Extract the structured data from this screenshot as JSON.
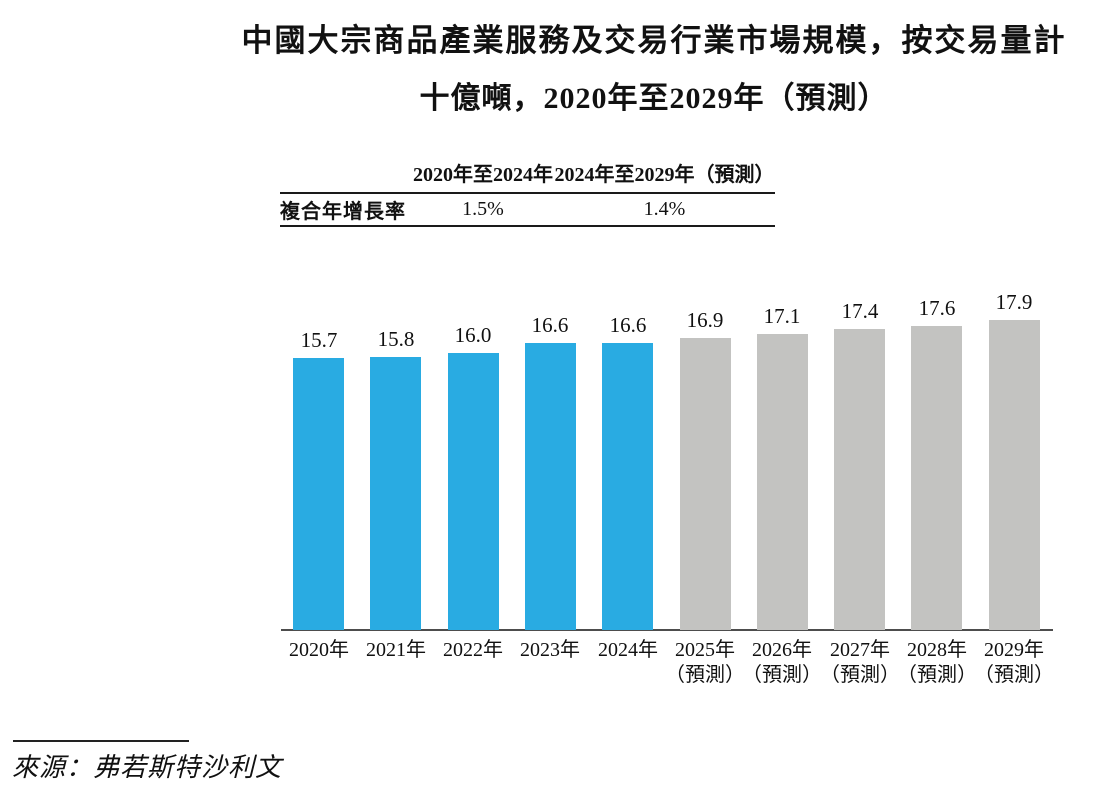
{
  "title": {
    "line1": "中國大宗商品產業服務及交易行業市場規模，按交易量計",
    "line2": "十億噸，2020年至2029年（預測）"
  },
  "cagr_table": {
    "row_label": "複合年增長率",
    "columns": [
      {
        "label": "2020年至2024年",
        "value": "1.5%"
      },
      {
        "label": "2024年至2029年（預測）",
        "value": "1.4%"
      }
    ]
  },
  "chart_data": {
    "type": "bar",
    "title": "中國大宗商品產業服務及交易行業市場規模，按交易量計",
    "subtitle": "十億噸，2020年至2029年（預測）",
    "unit_label": "十億噸",
    "categories": [
      {
        "label": "2020年",
        "sublabel": ""
      },
      {
        "label": "2021年",
        "sublabel": ""
      },
      {
        "label": "2022年",
        "sublabel": ""
      },
      {
        "label": "2023年",
        "sublabel": ""
      },
      {
        "label": "2024年",
        "sublabel": ""
      },
      {
        "label": "2025年",
        "sublabel": "（預測）"
      },
      {
        "label": "2026年",
        "sublabel": "（預測）"
      },
      {
        "label": "2027年",
        "sublabel": "（預測）"
      },
      {
        "label": "2028年",
        "sublabel": "（預測）"
      },
      {
        "label": "2029年",
        "sublabel": "（預測）"
      }
    ],
    "values": [
      15.7,
      15.8,
      16.0,
      16.6,
      16.6,
      16.9,
      17.1,
      17.4,
      17.6,
      17.9
    ],
    "value_labels": [
      "15.7",
      "15.8",
      "16.0",
      "16.6",
      "16.6",
      "16.9",
      "17.1",
      "17.4",
      "17.6",
      "17.9"
    ],
    "forecast_start_index": 5,
    "colors": {
      "actual_bar": "#29ABE2",
      "forecast_bar": "#C3C3C1",
      "axis_line": "#4D4D4D"
    },
    "ylim": [
      0,
      18.5
    ],
    "grid": false,
    "legend": false
  },
  "source": {
    "text": "來源：弗若斯特沙利文"
  }
}
